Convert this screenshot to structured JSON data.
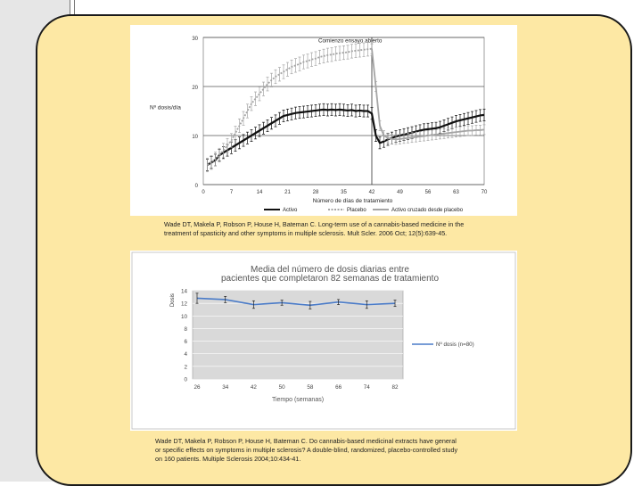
{
  "colors": {
    "panel_bg": "#fde8a4",
    "active_color": "#111111",
    "placebo_color": "#a5a5a5",
    "crossover_color": "#a5a5a5",
    "line2_color": "#4a7bc8",
    "plot2_bg": "#d9d9d9"
  },
  "chart_data": [
    {
      "type": "line",
      "ylabel": "Nº dosis/día",
      "xlabel": "Número de días de tratamiento",
      "annotation": "Comienzo ensayo abierto",
      "xticks": [
        0,
        7,
        14,
        21,
        28,
        35,
        42,
        49,
        56,
        63,
        70
      ],
      "yticks": [
        0,
        10,
        20,
        30
      ],
      "xlim": [
        0,
        70
      ],
      "ylim": [
        0,
        30
      ],
      "grid": true,
      "legend": "bottom",
      "series": [
        {
          "name": "Activo",
          "style": "solid",
          "x": [
            1,
            2,
            3,
            4,
            5,
            6,
            7,
            8,
            9,
            10,
            11,
            12,
            13,
            14,
            15,
            16,
            17,
            18,
            19,
            20,
            21,
            22,
            23,
            24,
            25,
            26,
            27,
            28,
            29,
            30,
            31,
            32,
            33,
            34,
            35,
            36,
            37,
            38,
            39,
            40,
            41,
            42,
            43,
            44,
            45,
            46,
            47,
            48,
            49,
            50,
            51,
            52,
            53,
            54,
            55,
            56,
            57,
            58,
            59,
            60,
            61,
            62,
            63,
            64,
            65,
            66,
            67,
            68,
            69,
            70
          ],
          "y": [
            4,
            4.5,
            5,
            6,
            6.5,
            7,
            7.5,
            8,
            8.5,
            9,
            9.5,
            10,
            10.5,
            11,
            11.5,
            12,
            12.5,
            13,
            13.5,
            14,
            14.2,
            14.4,
            14.6,
            14.7,
            14.8,
            14.9,
            15,
            15.1,
            15.2,
            15.3,
            15.2,
            15.3,
            15.2,
            15.3,
            15.2,
            15.1,
            15.2,
            15,
            15.1,
            15,
            15,
            14.5,
            10,
            8.5,
            8.8,
            9.2,
            9.5,
            9.8,
            10,
            10.2,
            10.4,
            10.6,
            10.8,
            11,
            11.2,
            11.3,
            11.4,
            11.5,
            11.7,
            12,
            12.3,
            12.6,
            12.9,
            13.1,
            13.3,
            13.5,
            13.7,
            13.9,
            14.1,
            14.2
          ],
          "error": 1.2
        },
        {
          "name": "Placebo",
          "style": "dotted",
          "x": [
            1,
            2,
            3,
            4,
            5,
            6,
            7,
            8,
            9,
            10,
            11,
            12,
            13,
            14,
            15,
            16,
            17,
            18,
            19,
            20,
            21,
            22,
            23,
            24,
            25,
            26,
            27,
            28,
            29,
            30,
            31,
            32,
            33,
            34,
            35,
            36,
            37,
            38,
            39,
            40,
            41,
            42
          ],
          "y": [
            4,
            4.5,
            5.2,
            6,
            7,
            8,
            9,
            10.5,
            12,
            13.5,
            15,
            16.5,
            17.5,
            18.5,
            19.5,
            20.5,
            21.3,
            22,
            22.5,
            23,
            23.5,
            24,
            24.3,
            24.6,
            25,
            25.2,
            25.5,
            25.7,
            26,
            26.2,
            26.4,
            26.5,
            26.7,
            26.8,
            26.9,
            27,
            27.2,
            27.3,
            27.4,
            27.5,
            27.6,
            27.7
          ],
          "error": 1.4
        },
        {
          "name": "Activo cruzado desde placebo",
          "style": "solid",
          "x": [
            42,
            43,
            44,
            45,
            46,
            47,
            48,
            49,
            50,
            51,
            52,
            53,
            54,
            55,
            56,
            57,
            58,
            59,
            60,
            61,
            62,
            63,
            64,
            65,
            66,
            67,
            68,
            69,
            70
          ],
          "y": [
            27.7,
            20,
            12,
            10,
            9.5,
            9.3,
            9.2,
            9.3,
            9.4,
            9.5,
            9.6,
            9.7,
            9.8,
            9.9,
            10,
            10.1,
            10.2,
            10.3,
            10.4,
            10.5,
            10.6,
            10.7,
            10.8,
            10.9,
            11,
            11,
            11.1,
            11.1,
            11.2
          ],
          "error": 1.0
        }
      ],
      "markers": [
        {
          "x": 42,
          "style": "vertical-line"
        }
      ]
    },
    {
      "type": "line",
      "title": "Media del número de dosis diarias entre pacientes que completaron 82 semanas de tratamiento",
      "ylabel": "Dosis",
      "xlabel": "Tiempo (semanas)",
      "categories": [
        "26",
        "34",
        "42",
        "50",
        "58",
        "66",
        "74",
        "82"
      ],
      "yticks": [
        0,
        2,
        4,
        6,
        8,
        10,
        12,
        14
      ],
      "ylim": [
        0,
        14
      ],
      "grid": true,
      "legend": "right",
      "series": [
        {
          "name": "Nº dosis (n=80)",
          "values": [
            12.8,
            12.6,
            11.8,
            12.1,
            11.7,
            12.2,
            11.8,
            12.0
          ],
          "error": [
            0.8,
            0.5,
            0.6,
            0.4,
            0.6,
            0.4,
            0.6,
            0.5
          ]
        }
      ]
    }
  ],
  "captions": {
    "first": [
      "Wade DT, Makela P, Robson P, House H, Bateman C. Long-term use of a cannabis-based medicine in the",
      "treatment of spasticity and other symptoms in multiple sclerosis. Mult Scler. 2006 Oct; 12(5):639-45."
    ],
    "second": [
      "Wade DT, Makela P, Robson P, House H, Bateman C. Do cannabis-based medicinal extracts have general",
      "or specific effects on symptoms in multiple sclerosis? A double-blind, randomized, placebo-controlled study",
      "on 160 patients. Multiple Sclerosis 2004;10:434-41."
    ]
  }
}
